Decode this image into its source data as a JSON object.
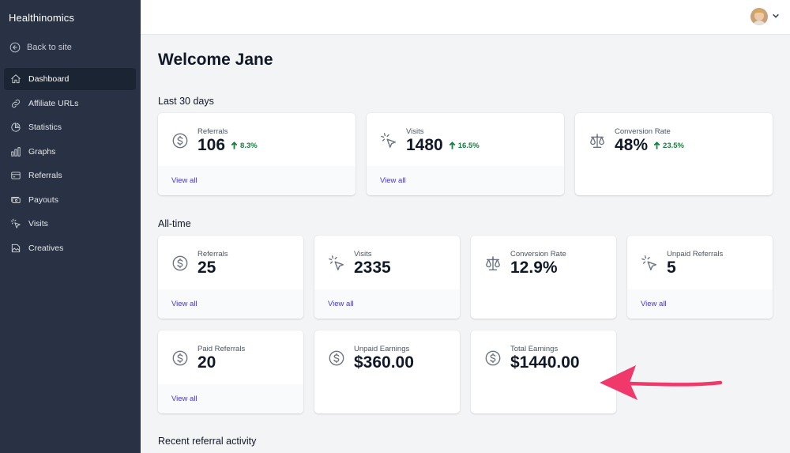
{
  "sidebar": {
    "brand": "Healthinomics",
    "back_label": "Back to site",
    "items": [
      {
        "label": "Dashboard",
        "icon": "home-icon",
        "active": true
      },
      {
        "label": "Affiliate URLs",
        "icon": "link-icon"
      },
      {
        "label": "Statistics",
        "icon": "pie-chart-icon"
      },
      {
        "label": "Graphs",
        "icon": "bar-chart-icon"
      },
      {
        "label": "Referrals",
        "icon": "credit-card-icon"
      },
      {
        "label": "Payouts",
        "icon": "cash-icon"
      },
      {
        "label": "Visits",
        "icon": "cursor-click-icon"
      },
      {
        "label": "Creatives",
        "icon": "image-icon"
      }
    ]
  },
  "header": {
    "avatar": "user-avatar",
    "menu_icon": "chevron-down-icon"
  },
  "main": {
    "title": "Welcome Jane",
    "last30": {
      "heading": "Last 30 days",
      "cards": [
        {
          "label": "Referrals",
          "value": "106",
          "change": "8.3%",
          "link": "View all",
          "icon": "dollar-circle-icon"
        },
        {
          "label": "Visits",
          "value": "1480",
          "change": "16.5%",
          "link": "View all",
          "icon": "cursor-click-icon"
        },
        {
          "label": "Conversion Rate",
          "value": "48%",
          "change": "23.5%",
          "icon": "scale-icon"
        }
      ]
    },
    "alltime": {
      "heading": "All-time",
      "cards": [
        {
          "label": "Referrals",
          "value": "25",
          "link": "View all",
          "icon": "dollar-circle-icon"
        },
        {
          "label": "Visits",
          "value": "2335",
          "link": "View all",
          "icon": "cursor-click-icon"
        },
        {
          "label": "Conversion Rate",
          "value": "12.9%",
          "icon": "scale-icon"
        },
        {
          "label": "Unpaid Referrals",
          "value": "5",
          "link": "View all",
          "icon": "cursor-click-icon"
        },
        {
          "label": "Paid Referrals",
          "value": "20",
          "link": "View all",
          "icon": "dollar-circle-icon"
        },
        {
          "label": "Unpaid Earnings",
          "value": "$360.00",
          "icon": "dollar-circle-icon"
        },
        {
          "label": "Total Earnings",
          "value": "$1440.00",
          "icon": "dollar-circle-icon"
        }
      ]
    },
    "recent_heading": "Recent referral activity"
  },
  "annotation": {
    "arrow_color": "#f0386b"
  },
  "colors": {
    "sidebar_bg": "#283244",
    "active_bg": "#1b2433",
    "link": "#4338ca",
    "positive": "#15803d"
  }
}
